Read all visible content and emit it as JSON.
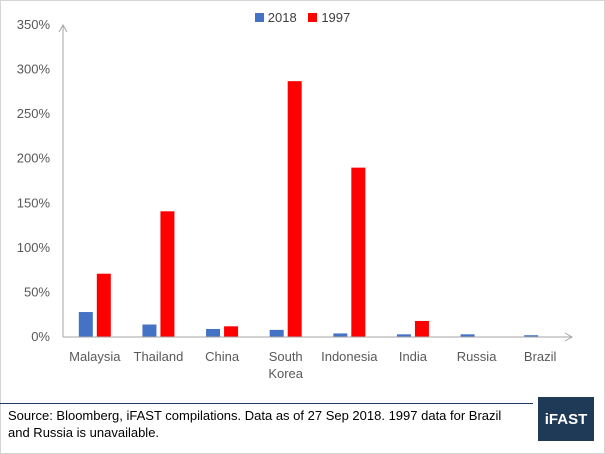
{
  "chart_data": {
    "type": "bar",
    "categories": [
      "Malaysia",
      "Thailand",
      "China",
      "South Korea",
      "Indonesia",
      "India",
      "Russia",
      "Brazil"
    ],
    "category_labels": [
      [
        "Malaysia"
      ],
      [
        "Thailand"
      ],
      [
        "China"
      ],
      [
        "South",
        "Korea"
      ],
      [
        "Indonesia"
      ],
      [
        "India"
      ],
      [
        "Russia"
      ],
      [
        "Brazil"
      ]
    ],
    "series": [
      {
        "name": "2018",
        "color": "#4472c4",
        "values": [
          28,
          14,
          9,
          8,
          4,
          3,
          3,
          2
        ]
      },
      {
        "name": "1997",
        "color": "#ff0000",
        "values": [
          71,
          141,
          12,
          287,
          190,
          18,
          null,
          null
        ]
      }
    ],
    "y_ticks": [
      "0%",
      "50%",
      "100%",
      "150%",
      "200%",
      "250%",
      "300%",
      "350%"
    ],
    "ylim": [
      0,
      350
    ],
    "y_unit": "%",
    "grid": false,
    "legend_position": "top-center"
  },
  "footer": {
    "source_note": "Source: Bloomberg, iFAST compilations. Data as of 27 Sep 2018.  1997 data for Brazil and Russia is unavailable.",
    "logo_text": "iFAST"
  }
}
